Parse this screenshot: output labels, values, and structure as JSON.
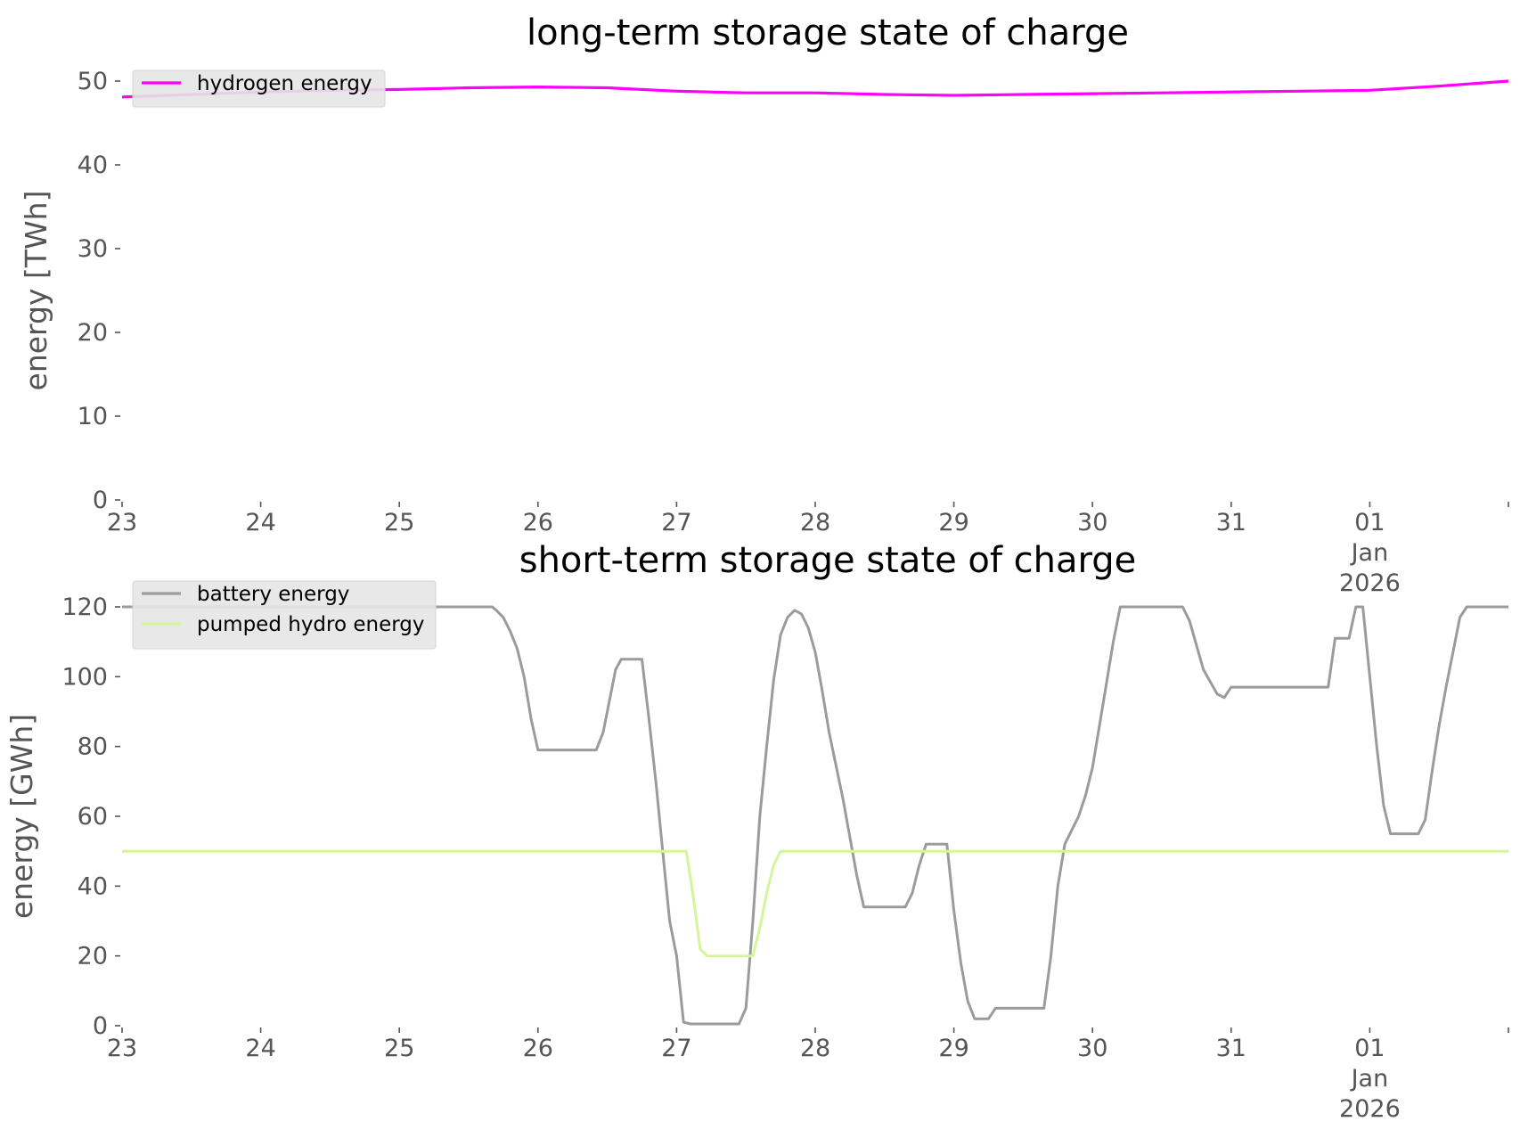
{
  "chart_data": [
    {
      "type": "line",
      "title": "long-term storage state of charge",
      "xlabel": "",
      "ylabel": "energy [TWh]",
      "ylim": [
        0,
        50
      ],
      "yticks": [
        0,
        10,
        20,
        30,
        40,
        50
      ],
      "xlim": [
        0,
        10
      ],
      "xtick_labels": [
        {
          "x": 0,
          "lines": [
            "23"
          ]
        },
        {
          "x": 1,
          "lines": [
            "24"
          ]
        },
        {
          "x": 2,
          "lines": [
            "25"
          ]
        },
        {
          "x": 3,
          "lines": [
            "26"
          ]
        },
        {
          "x": 4,
          "lines": [
            "27"
          ]
        },
        {
          "x": 5,
          "lines": [
            "28"
          ]
        },
        {
          "x": 6,
          "lines": [
            "29"
          ]
        },
        {
          "x": 7,
          "lines": [
            "30"
          ]
        },
        {
          "x": 8,
          "lines": [
            "31"
          ]
        },
        {
          "x": 9,
          "lines": [
            "01",
            "Jan",
            "2026"
          ]
        },
        {
          "x": 10,
          "lines": [
            ""
          ]
        }
      ],
      "grid": false,
      "legend_position": "top-left",
      "series": [
        {
          "name": "hydrogen energy",
          "color": "#ff00ff",
          "points": [
            [
              0,
              48.1
            ],
            [
              0.5,
              48.4
            ],
            [
              1,
              48.7
            ],
            [
              1.5,
              48.9
            ],
            [
              2,
              49.0
            ],
            [
              2.5,
              49.2
            ],
            [
              3,
              49.3
            ],
            [
              3.5,
              49.2
            ],
            [
              4,
              48.8
            ],
            [
              4.5,
              48.6
            ],
            [
              5,
              48.6
            ],
            [
              5.5,
              48.4
            ],
            [
              6,
              48.3
            ],
            [
              6.5,
              48.4
            ],
            [
              7,
              48.5
            ],
            [
              7.5,
              48.6
            ],
            [
              8,
              48.7
            ],
            [
              8.5,
              48.8
            ],
            [
              9,
              48.9
            ],
            [
              9.5,
              49.4
            ],
            [
              10,
              50.0
            ]
          ]
        }
      ]
    },
    {
      "type": "line",
      "title": "short-term storage state of charge",
      "xlabel": "",
      "ylabel": "energy [GWh]",
      "ylim": [
        0,
        120
      ],
      "yticks": [
        0,
        20,
        40,
        60,
        80,
        100,
        120
      ],
      "xlim": [
        0,
        10
      ],
      "xtick_labels": [
        {
          "x": 0,
          "lines": [
            "23"
          ]
        },
        {
          "x": 1,
          "lines": [
            "24"
          ]
        },
        {
          "x": 2,
          "lines": [
            "25"
          ]
        },
        {
          "x": 3,
          "lines": [
            "26"
          ]
        },
        {
          "x": 4,
          "lines": [
            "27"
          ]
        },
        {
          "x": 5,
          "lines": [
            "28"
          ]
        },
        {
          "x": 6,
          "lines": [
            "29"
          ]
        },
        {
          "x": 7,
          "lines": [
            "30"
          ]
        },
        {
          "x": 8,
          "lines": [
            "31"
          ]
        },
        {
          "x": 9,
          "lines": [
            "01",
            "Jan",
            "2026"
          ]
        },
        {
          "x": 10,
          "lines": [
            ""
          ]
        }
      ],
      "grid": false,
      "legend_position": "top-left",
      "series": [
        {
          "name": "battery energy",
          "color": "#9b9b9b",
          "points": [
            [
              0,
              120
            ],
            [
              2.67,
              120
            ],
            [
              2.7,
              119
            ],
            [
              2.75,
              117
            ],
            [
              2.8,
              113
            ],
            [
              2.85,
              108
            ],
            [
              2.9,
              100
            ],
            [
              2.95,
              88
            ],
            [
              3.0,
              79
            ],
            [
              3.42,
              79
            ],
            [
              3.47,
              84
            ],
            [
              3.52,
              94
            ],
            [
              3.56,
              102
            ],
            [
              3.6,
              105
            ],
            [
              3.75,
              105
            ],
            [
              3.8,
              88
            ],
            [
              3.85,
              70
            ],
            [
              3.9,
              50
            ],
            [
              3.95,
              30
            ],
            [
              4.0,
              20
            ],
            [
              4.05,
              1
            ],
            [
              4.1,
              0.5
            ],
            [
              4.45,
              0.5
            ],
            [
              4.5,
              5
            ],
            [
              4.55,
              30
            ],
            [
              4.6,
              60
            ],
            [
              4.65,
              80
            ],
            [
              4.7,
              99
            ],
            [
              4.75,
              112
            ],
            [
              4.8,
              117
            ],
            [
              4.85,
              119
            ],
            [
              4.9,
              118
            ],
            [
              4.95,
              114
            ],
            [
              5.0,
              107
            ],
            [
              5.05,
              96
            ],
            [
              5.1,
              84
            ],
            [
              5.2,
              65
            ],
            [
              5.3,
              43
            ],
            [
              5.35,
              34
            ],
            [
              5.65,
              34
            ],
            [
              5.7,
              38
            ],
            [
              5.75,
              46
            ],
            [
              5.8,
              52
            ],
            [
              5.95,
              52
            ],
            [
              6.0,
              33
            ],
            [
              6.05,
              18
            ],
            [
              6.1,
              7
            ],
            [
              6.15,
              2
            ],
            [
              6.25,
              2
            ],
            [
              6.3,
              5
            ],
            [
              6.55,
              5
            ],
            [
              6.65,
              5
            ],
            [
              6.7,
              20
            ],
            [
              6.75,
              40
            ],
            [
              6.8,
              52
            ],
            [
              6.9,
              60
            ],
            [
              6.95,
              66
            ],
            [
              7.0,
              74
            ],
            [
              7.05,
              86
            ],
            [
              7.1,
              98
            ],
            [
              7.15,
              110
            ],
            [
              7.2,
              120
            ],
            [
              7.65,
              120
            ],
            [
              7.7,
              116
            ],
            [
              7.75,
              109
            ],
            [
              7.8,
              102
            ],
            [
              7.9,
              95
            ],
            [
              7.95,
              94
            ],
            [
              8.0,
              97
            ],
            [
              8.7,
              97
            ],
            [
              8.75,
              111
            ],
            [
              8.85,
              111
            ],
            [
              8.9,
              120
            ],
            [
              8.95,
              120
            ],
            [
              9.0,
              100
            ],
            [
              9.05,
              80
            ],
            [
              9.1,
              63
            ],
            [
              9.15,
              55
            ],
            [
              9.35,
              55
            ],
            [
              9.4,
              59
            ],
            [
              9.45,
              73
            ],
            [
              9.5,
              86
            ],
            [
              9.55,
              97
            ],
            [
              9.6,
              107
            ],
            [
              9.65,
              117
            ],
            [
              9.7,
              120
            ],
            [
              10.0,
              120
            ]
          ]
        },
        {
          "name": "pumped hydro energy",
          "color": "#d5f59a",
          "points": [
            [
              0,
              50
            ],
            [
              4.07,
              50
            ],
            [
              4.12,
              37
            ],
            [
              4.17,
              22
            ],
            [
              4.22,
              20
            ],
            [
              4.55,
              20
            ],
            [
              4.6,
              28
            ],
            [
              4.65,
              38
            ],
            [
              4.7,
              46
            ],
            [
              4.75,
              50
            ],
            [
              10,
              50
            ]
          ]
        }
      ]
    }
  ]
}
